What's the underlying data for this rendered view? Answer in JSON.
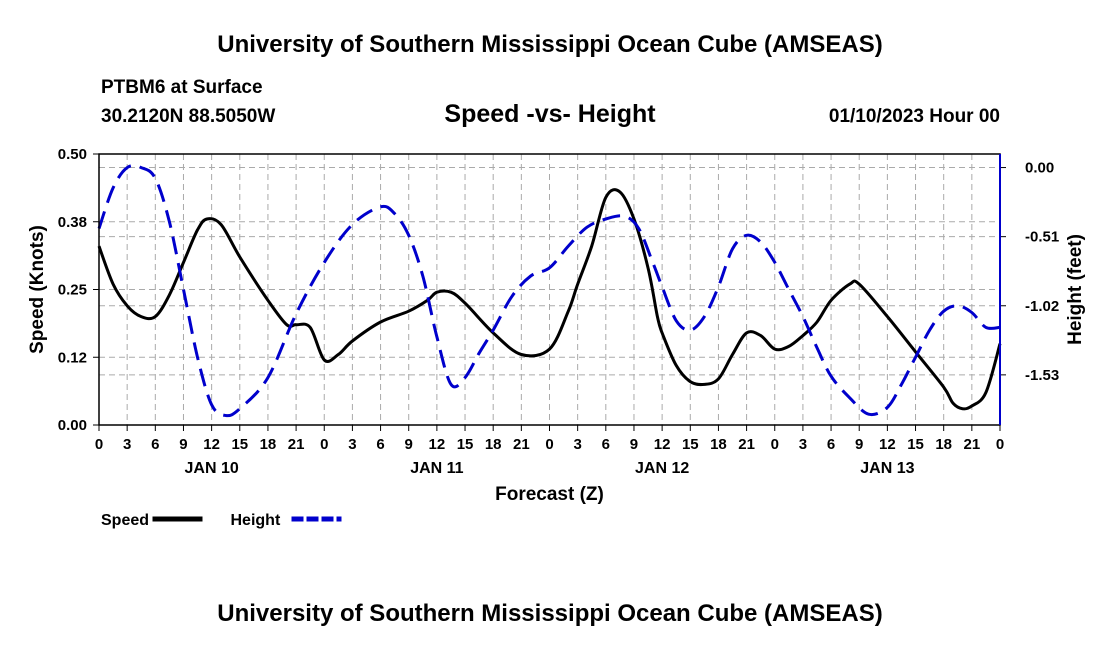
{
  "header": {
    "title": "University of Southern Mississippi Ocean Cube (AMSEAS)",
    "station": "PTBM6 at Surface",
    "coordinates": "30.2120N  88.5050W",
    "subtitle": "Speed -vs- Height",
    "datetime": "01/10/2023 Hour 00"
  },
  "footer": {
    "title": "University of Southern Mississippi Ocean Cube (AMSEAS)"
  },
  "chart_data": {
    "type": "line",
    "title": "Speed -vs- Height",
    "xlabel": "Forecast (Z)",
    "ylabel": "Speed (Knots)",
    "y2label": "Height (feet)",
    "x_range": [
      0,
      96
    ],
    "ylim": [
      0,
      0.5
    ],
    "y2lim": [
      -1.9,
      0.1
    ],
    "yticks": [
      "0.00",
      "0.12",
      "0.25",
      "0.38",
      "0.50"
    ],
    "y2ticks": [
      "0.00",
      "-0.51",
      "-1.02",
      "-1.53"
    ],
    "x_tick_labels": [
      "0",
      "3",
      "6",
      "9",
      "12",
      "15",
      "18",
      "21",
      "0",
      "3",
      "6",
      "9",
      "12",
      "15",
      "18",
      "21",
      "0",
      "3",
      "6",
      "9",
      "12",
      "15",
      "18",
      "21",
      "0",
      "3",
      "6",
      "9",
      "12",
      "15",
      "18",
      "21",
      "0"
    ],
    "day_labels": [
      {
        "label": "JAN 10",
        "hour": 12
      },
      {
        "label": "JAN 11",
        "hour": 36
      },
      {
        "label": "JAN 12",
        "hour": 60
      },
      {
        "label": "JAN 13",
        "hour": 84
      }
    ],
    "grid": true,
    "series": [
      {
        "name": "Speed",
        "axis": "left",
        "color": "#000000",
        "style": "solid",
        "x": [
          0,
          1.5,
          3,
          4.5,
          6,
          7.5,
          9,
          10.5,
          11.5,
          13,
          15,
          18,
          20,
          21,
          22.5,
          24,
          25.5,
          27,
          30,
          33,
          35,
          36,
          37.5,
          39,
          42,
          45,
          48,
          50,
          51,
          52.5,
          54,
          55.5,
          57,
          58.5,
          59.5,
          60,
          61.5,
          63,
          64.5,
          66,
          67.5,
          69,
          70.5,
          72,
          73.5,
          75,
          76.5,
          78,
          80,
          81,
          84,
          87,
          90,
          91,
          92,
          93,
          94.5,
          96
        ],
        "values": [
          0.33,
          0.26,
          0.22,
          0.2,
          0.2,
          0.24,
          0.3,
          0.36,
          0.38,
          0.37,
          0.31,
          0.23,
          0.185,
          0.185,
          0.18,
          0.12,
          0.13,
          0.155,
          0.19,
          0.21,
          0.23,
          0.245,
          0.245,
          0.225,
          0.17,
          0.13,
          0.14,
          0.21,
          0.26,
          0.33,
          0.42,
          0.43,
          0.38,
          0.29,
          0.2,
          0.17,
          0.11,
          0.08,
          0.075,
          0.085,
          0.13,
          0.17,
          0.165,
          0.14,
          0.145,
          0.165,
          0.19,
          0.23,
          0.26,
          0.26,
          0.2,
          0.135,
          0.07,
          0.04,
          0.03,
          0.035,
          0.06,
          0.15
        ]
      },
      {
        "name": "Height",
        "axis": "right",
        "color": "#0000cc",
        "style": "dashed",
        "x": [
          0,
          1.5,
          3,
          4.5,
          6,
          7.5,
          9,
          10.5,
          12,
          13.5,
          15,
          18,
          21,
          24,
          27,
          30,
          31.5,
          33,
          34.5,
          36,
          37.5,
          39,
          40.5,
          42,
          44,
          46,
          48,
          50,
          52,
          54,
          56,
          57.5,
          59,
          60,
          61.5,
          63,
          64.5,
          66,
          67.5,
          69,
          70.5,
          72,
          73.5,
          75,
          76.5,
          78,
          80,
          82,
          84,
          85.5,
          87,
          88.5,
          90,
          91.5,
          93,
          94.5,
          96
        ],
        "values": [
          -0.45,
          -0.15,
          0.0,
          0.0,
          -0.08,
          -0.4,
          -0.9,
          -1.4,
          -1.75,
          -1.83,
          -1.78,
          -1.55,
          -1.08,
          -0.7,
          -0.42,
          -0.29,
          -0.34,
          -0.5,
          -0.8,
          -1.25,
          -1.6,
          -1.55,
          -1.37,
          -1.2,
          -0.95,
          -0.8,
          -0.74,
          -0.58,
          -0.44,
          -0.38,
          -0.36,
          -0.45,
          -0.7,
          -0.88,
          -1.13,
          -1.2,
          -1.1,
          -0.88,
          -0.6,
          -0.5,
          -0.55,
          -0.7,
          -0.9,
          -1.1,
          -1.33,
          -1.54,
          -1.7,
          -1.82,
          -1.77,
          -1.6,
          -1.4,
          -1.2,
          -1.06,
          -1.02,
          -1.07,
          -1.18,
          -1.18
        ]
      }
    ],
    "legend": [
      {
        "label": "Speed",
        "color": "#000000",
        "style": "solid"
      },
      {
        "label": "Height",
        "color": "#0000cc",
        "style": "dashed"
      }
    ],
    "legend_position": "bottom-left"
  }
}
